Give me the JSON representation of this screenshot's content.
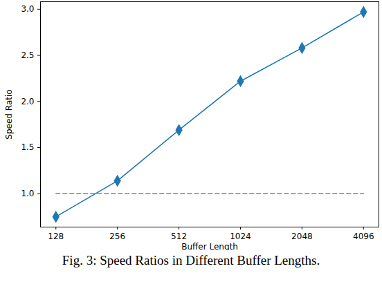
{
  "chart_data": {
    "type": "line",
    "xlabel": "Buffer Length",
    "ylabel": "Speed Ratio",
    "caption": "Fig. 3: Speed Ratios in Different Buffer Lengths.",
    "x": [
      128,
      256,
      512,
      1024,
      2048,
      4096
    ],
    "series": [
      {
        "values": [
          0.75,
          1.14,
          1.69,
          2.22,
          2.58,
          2.97
        ],
        "color": "#1f77b4",
        "marker": "diamond",
        "line_style": "solid"
      },
      {
        "values": [
          1.0,
          1.0,
          1.0,
          1.0,
          1.0,
          1.0
        ],
        "color": "#808080",
        "line_style": "dashed"
      }
    ],
    "log": "x",
    "xlim": [
      107.6,
      4871
    ],
    "ylim": [
      0.639,
      3.081
    ],
    "xticks": [
      128,
      256,
      512,
      1024,
      2048,
      4096
    ],
    "yticks": [
      {
        "value": 1.0,
        "label": "1.0"
      },
      {
        "value": 1.5,
        "label": "1.5"
      },
      {
        "value": 2.0,
        "label": "2.0"
      },
      {
        "value": 2.5,
        "label": "2.5"
      },
      {
        "value": 3.0,
        "label": "3.0"
      }
    ],
    "grid": false
  }
}
